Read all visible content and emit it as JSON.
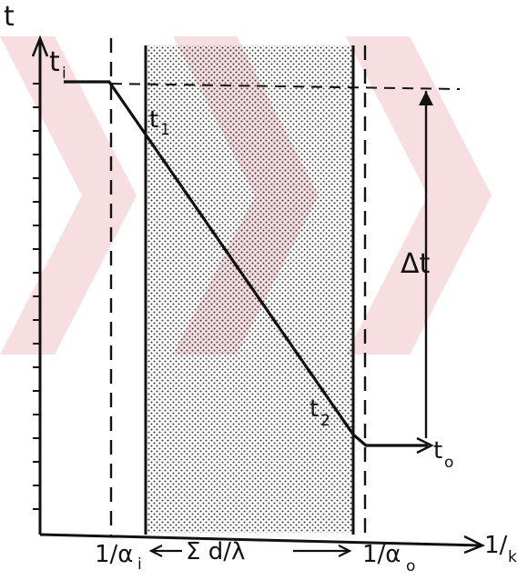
{
  "colors": {
    "ink": "#111111",
    "paper": "#ffffff",
    "watermark": "#f3d3d7",
    "wall_dots": "#3a3a3a"
  },
  "labels": {
    "y_axis": "t",
    "x_axis_main": "1/",
    "x_axis_sub": "k",
    "t_i_main": "t",
    "t_i_sub": "i",
    "t_1_main": "t",
    "t_1_sub": "1",
    "t_2_main": "t",
    "t_2_sub": "2",
    "t_o_main": "t",
    "t_o_sub": "o",
    "delta_t": "Δt",
    "inner_resistance_main": "1/α",
    "inner_resistance_sub": "i",
    "outer_resistance_main": "1/α",
    "outer_resistance_sub": "o",
    "wall_resistance": "Σ d/λ"
  },
  "icons": {
    "x_axis_arrow": "arrow-right-icon",
    "y_axis_arrow": "arrow-up-icon",
    "delta_arrow": "double-arrow-vertical-icon",
    "watermark": "chevron-watermark"
  }
}
